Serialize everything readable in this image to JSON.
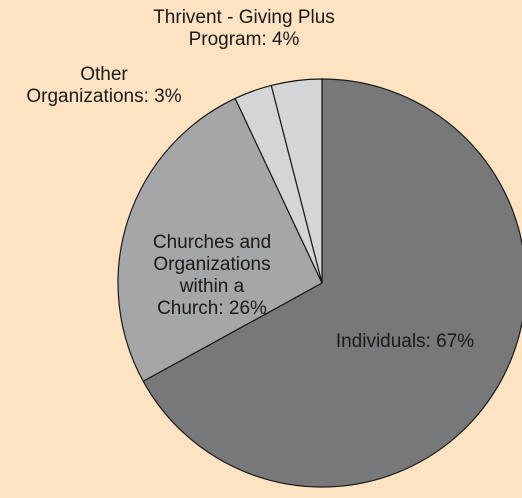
{
  "chart_data": {
    "type": "pie",
    "title": "",
    "slices": [
      {
        "label": "Individuals",
        "value": 67,
        "label_text": "Individuals: 67%",
        "color": "#77787a"
      },
      {
        "label": "Churches and Organizations within a Church",
        "value": 26,
        "label_text": "Churches and\nOrganizations\nwithin a\nChurch: 26%",
        "color": "#a5a6a8"
      },
      {
        "label": "Other Organizations",
        "value": 3,
        "label_text": "Other\nOrganizations: 3%",
        "color": "#d4d5d7"
      },
      {
        "label": "Thrivent - Giving Plus Program",
        "value": 4,
        "label_text": "Thrivent - Giving Plus\nProgram: 4%",
        "color": "#d4d5d7"
      }
    ],
    "start_angle": "12 o'clock",
    "direction": "clockwise",
    "legend": "none"
  },
  "colors": {
    "background": "#fde3c2",
    "outline": "#1a1a1a"
  }
}
